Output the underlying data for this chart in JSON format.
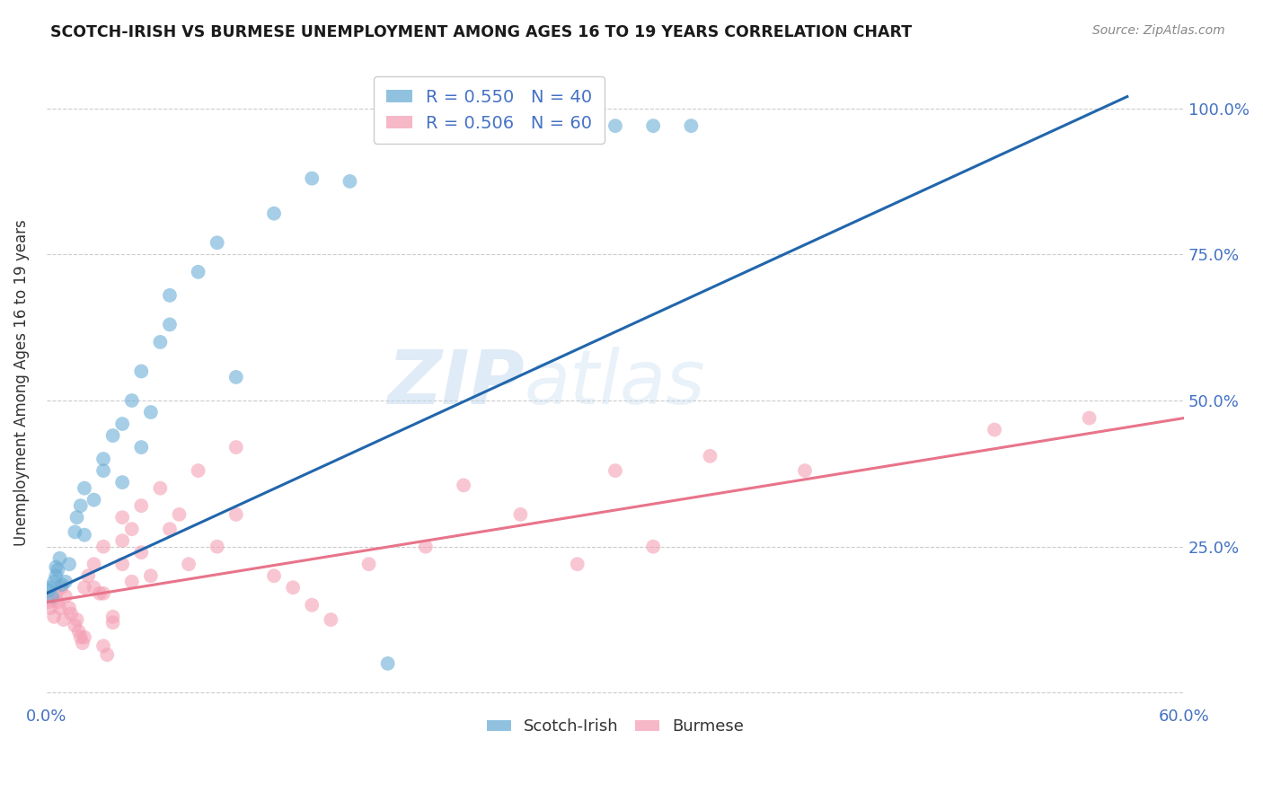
{
  "title": "SCOTCH-IRISH VS BURMESE UNEMPLOYMENT AMONG AGES 16 TO 19 YEARS CORRELATION CHART",
  "source": "Source: ZipAtlas.com",
  "ylabel": "Unemployment Among Ages 16 to 19 years",
  "xlim": [
    0.0,
    0.6
  ],
  "ylim": [
    -0.02,
    1.08
  ],
  "xtick_vals": [
    0.0,
    0.1,
    0.2,
    0.3,
    0.4,
    0.5,
    0.6
  ],
  "xticklabels": [
    "0.0%",
    "",
    "",
    "",
    "",
    "",
    "60.0%"
  ],
  "ytick_vals": [
    0.0,
    0.25,
    0.5,
    0.75,
    1.0
  ],
  "yticklabels_right": [
    "",
    "25.0%",
    "50.0%",
    "75.0%",
    "100.0%"
  ],
  "scotch_irish_color": "#6baed6",
  "burmese_color": "#f4a0b5",
  "line_scotch_color": "#2166ac",
  "line_burmese_color": "#e8748a",
  "grid_color": "#cccccc",
  "tick_label_color": "#4472c4",
  "scotch_R": "0.550",
  "scotch_N": "40",
  "burmese_R": "0.506",
  "burmese_N": "60",
  "si_line_x0": 0.0,
  "si_line_y0": 0.17,
  "si_line_x1": 0.57,
  "si_line_y1": 1.02,
  "bm_line_x0": 0.0,
  "bm_line_y0": 0.155,
  "bm_line_x1": 0.6,
  "bm_line_y1": 0.47,
  "scotch_irish_points": [
    [
      0.001,
      0.175
    ],
    [
      0.002,
      0.18
    ],
    [
      0.003,
      0.165
    ],
    [
      0.004,
      0.19
    ],
    [
      0.005,
      0.2
    ],
    [
      0.005,
      0.215
    ],
    [
      0.006,
      0.21
    ],
    [
      0.007,
      0.23
    ],
    [
      0.008,
      0.185
    ],
    [
      0.01,
      0.19
    ],
    [
      0.012,
      0.22
    ],
    [
      0.015,
      0.275
    ],
    [
      0.016,
      0.3
    ],
    [
      0.018,
      0.32
    ],
    [
      0.02,
      0.35
    ],
    [
      0.02,
      0.27
    ],
    [
      0.025,
      0.33
    ],
    [
      0.03,
      0.38
    ],
    [
      0.03,
      0.4
    ],
    [
      0.035,
      0.44
    ],
    [
      0.04,
      0.46
    ],
    [
      0.04,
      0.36
    ],
    [
      0.045,
      0.5
    ],
    [
      0.05,
      0.42
    ],
    [
      0.05,
      0.55
    ],
    [
      0.055,
      0.48
    ],
    [
      0.06,
      0.6
    ],
    [
      0.065,
      0.63
    ],
    [
      0.065,
      0.68
    ],
    [
      0.08,
      0.72
    ],
    [
      0.09,
      0.77
    ],
    [
      0.1,
      0.54
    ],
    [
      0.12,
      0.82
    ],
    [
      0.14,
      0.88
    ],
    [
      0.16,
      0.875
    ],
    [
      0.18,
      0.05
    ],
    [
      0.28,
      0.97
    ],
    [
      0.3,
      0.97
    ],
    [
      0.32,
      0.97
    ],
    [
      0.34,
      0.97
    ]
  ],
  "burmese_points": [
    [
      0.001,
      0.155
    ],
    [
      0.002,
      0.145
    ],
    [
      0.003,
      0.16
    ],
    [
      0.004,
      0.13
    ],
    [
      0.005,
      0.17
    ],
    [
      0.006,
      0.155
    ],
    [
      0.007,
      0.145
    ],
    [
      0.008,
      0.18
    ],
    [
      0.009,
      0.125
    ],
    [
      0.01,
      0.165
    ],
    [
      0.012,
      0.145
    ],
    [
      0.013,
      0.135
    ],
    [
      0.015,
      0.115
    ],
    [
      0.016,
      0.125
    ],
    [
      0.017,
      0.105
    ],
    [
      0.018,
      0.095
    ],
    [
      0.019,
      0.085
    ],
    [
      0.02,
      0.095
    ],
    [
      0.02,
      0.18
    ],
    [
      0.022,
      0.2
    ],
    [
      0.025,
      0.22
    ],
    [
      0.025,
      0.18
    ],
    [
      0.028,
      0.17
    ],
    [
      0.03,
      0.25
    ],
    [
      0.03,
      0.17
    ],
    [
      0.03,
      0.08
    ],
    [
      0.032,
      0.065
    ],
    [
      0.035,
      0.13
    ],
    [
      0.035,
      0.12
    ],
    [
      0.04,
      0.22
    ],
    [
      0.04,
      0.3
    ],
    [
      0.04,
      0.26
    ],
    [
      0.045,
      0.28
    ],
    [
      0.045,
      0.19
    ],
    [
      0.05,
      0.32
    ],
    [
      0.05,
      0.24
    ],
    [
      0.055,
      0.2
    ],
    [
      0.06,
      0.35
    ],
    [
      0.065,
      0.28
    ],
    [
      0.07,
      0.305
    ],
    [
      0.075,
      0.22
    ],
    [
      0.08,
      0.38
    ],
    [
      0.09,
      0.25
    ],
    [
      0.1,
      0.42
    ],
    [
      0.1,
      0.305
    ],
    [
      0.12,
      0.2
    ],
    [
      0.13,
      0.18
    ],
    [
      0.14,
      0.15
    ],
    [
      0.15,
      0.125
    ],
    [
      0.17,
      0.22
    ],
    [
      0.2,
      0.25
    ],
    [
      0.22,
      0.355
    ],
    [
      0.25,
      0.305
    ],
    [
      0.28,
      0.22
    ],
    [
      0.3,
      0.38
    ],
    [
      0.32,
      0.25
    ],
    [
      0.35,
      0.405
    ],
    [
      0.4,
      0.38
    ],
    [
      0.5,
      0.45
    ],
    [
      0.55,
      0.47
    ]
  ]
}
